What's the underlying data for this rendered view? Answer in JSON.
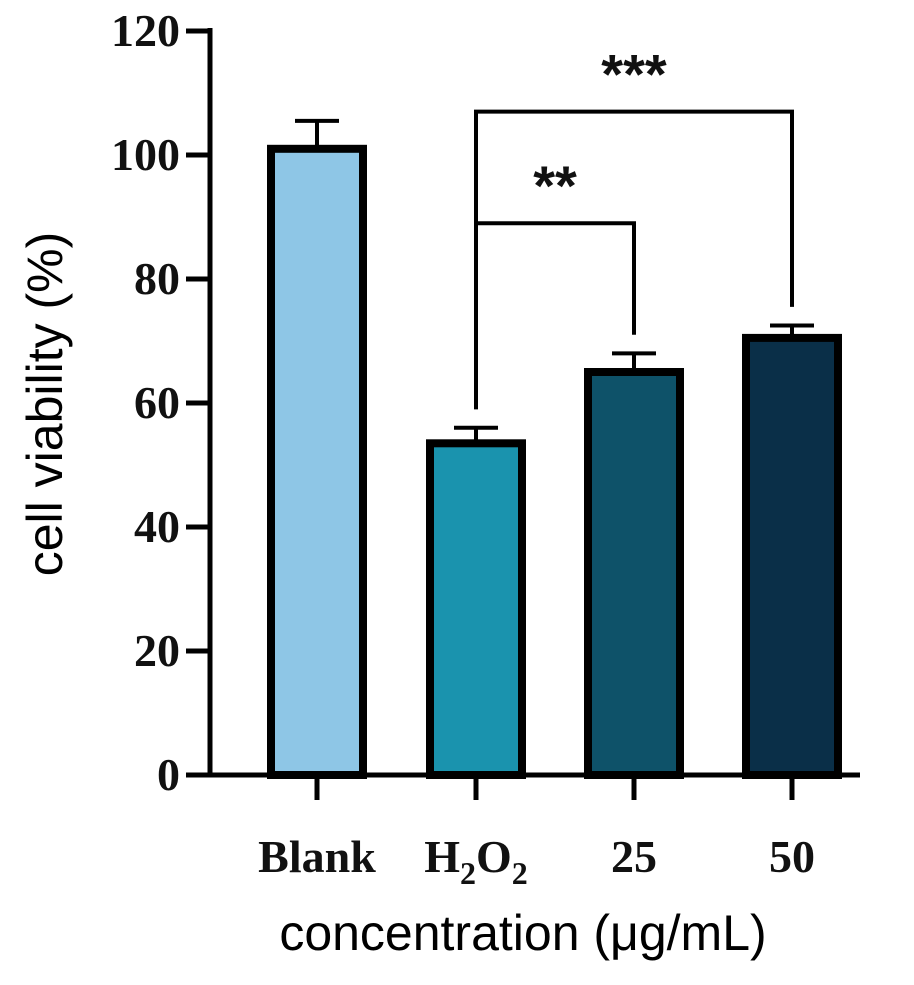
{
  "chart_data": {
    "type": "bar",
    "ylabel": "cell viability (%)",
    "xlabel": "concentration (μg/mL)",
    "ylim": [
      0,
      120
    ],
    "yticks": [
      0,
      20,
      40,
      60,
      80,
      100,
      120
    ],
    "categories": [
      {
        "label": "Blank",
        "main": "Blank"
      },
      {
        "label": "H2O2",
        "main": "H",
        "sub1": "2",
        "mid": "O",
        "sub2": "2"
      },
      {
        "label": "25",
        "main": "25"
      },
      {
        "label": "50",
        "main": "50"
      }
    ],
    "values": [
      101,
      53.5,
      65,
      70.5
    ],
    "errors": [
      4.5,
      2.5,
      3,
      2
    ],
    "colors": [
      "#8ec6e6",
      "#1a93ae",
      "#0e5269",
      "#0a2f48"
    ],
    "edge_color": "#000000",
    "significance": [
      {
        "from": 1,
        "to": 2,
        "label": "**",
        "level": 89
      },
      {
        "from": 1,
        "to": 3,
        "label": "***",
        "level": 107
      }
    ],
    "grid": false,
    "legend": "none"
  }
}
